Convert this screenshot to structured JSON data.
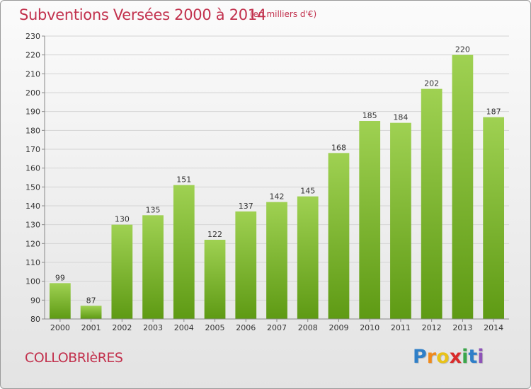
{
  "title": "Subventions Versées 2000 à 2014",
  "subtitle": "(en milliers d'€)",
  "commune": "COLLOBRIèRES",
  "logo": {
    "text": "Proxiti",
    "letters": [
      {
        "ch": "P",
        "color": "#2f7fc8"
      },
      {
        "ch": "r",
        "color": "#f08a1c"
      },
      {
        "ch": "o",
        "color": "#e8c21a"
      },
      {
        "ch": "x",
        "color": "#d92b2b"
      },
      {
        "ch": "i",
        "color": "#3aa64a"
      },
      {
        "ch": "t",
        "color": "#2f7fc8"
      },
      {
        "ch": "i",
        "color": "#8d52b8"
      }
    ]
  },
  "colors": {
    "bar_top": "#9fd152",
    "bar_bottom": "#5e9a14",
    "title": "#c2314d"
  },
  "chart_data": {
    "type": "bar",
    "title": "Subventions Versées 2000 à 2014",
    "subtitle": "(en milliers d'€)",
    "xlabel": "",
    "ylabel": "",
    "ylim": [
      80,
      230
    ],
    "ystep": 10,
    "grid": true,
    "categories": [
      "2000",
      "2001",
      "2002",
      "2003",
      "2004",
      "2005",
      "2006",
      "2007",
      "2008",
      "2009",
      "2010",
      "2011",
      "2012",
      "2013",
      "2014"
    ],
    "values": [
      99,
      87,
      130,
      135,
      151,
      122,
      137,
      142,
      145,
      168,
      185,
      184,
      202,
      220,
      187
    ]
  }
}
